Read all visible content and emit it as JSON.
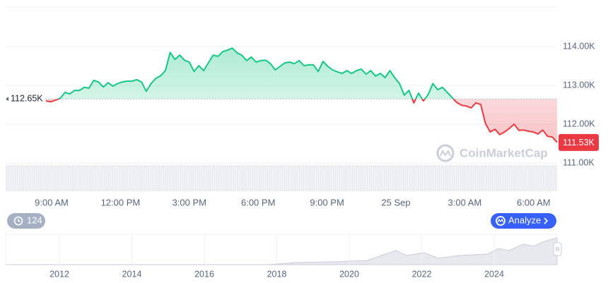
{
  "chart_data": {
    "type": "line",
    "values": [
      112600,
      112580,
      112620,
      112670,
      112820,
      112780,
      112870,
      112870,
      112950,
      112930,
      113130,
      113090,
      112960,
      113070,
      112980,
      113050,
      113090,
      113110,
      113110,
      113150,
      113090,
      112850,
      113050,
      113180,
      113250,
      113380,
      113850,
      113670,
      113780,
      113650,
      113600,
      113360,
      113510,
      113380,
      113580,
      113780,
      113750,
      113870,
      113910,
      113960,
      113840,
      113780,
      113640,
      113730,
      113600,
      113640,
      113650,
      113560,
      113400,
      113490,
      113580,
      113600,
      113560,
      113640,
      113510,
      113530,
      113530,
      113360,
      113620,
      113490,
      113400,
      113350,
      113310,
      113380,
      113310,
      113380,
      113420,
      113290,
      113380,
      113240,
      113310,
      113200,
      113380,
      113200,
      113050,
      112750,
      112870,
      112550,
      112800,
      112600,
      112760,
      113050,
      112890,
      112950,
      112820,
      112690,
      112560,
      112490,
      112470,
      112420,
      112550,
      112510,
      112020,
      111800,
      111870,
      111730,
      111800,
      111890,
      112000,
      111840,
      111850,
      111820,
      111800,
      111750,
      111850,
      111690,
      111670,
      111530
    ],
    "color_above": "#16c784",
    "color_below": "#ea3943",
    "reference": {
      "value": 112650,
      "label": "112.65K"
    },
    "last_price": {
      "value": 111530,
      "label": "111.53K"
    },
    "ylim": [
      111000,
      115000
    ],
    "yticks": [
      {
        "value": 111000,
        "label": "111.00K"
      },
      {
        "value": 112000,
        "label": "112.00K"
      },
      {
        "value": 113000,
        "label": "113.00K"
      },
      {
        "value": 114000,
        "label": "114.00K"
      }
    ],
    "xticks": [
      "9:00 AM",
      "12:00 PM",
      "3:00 PM",
      "6:00 PM",
      "9:00 PM",
      "25 Sep",
      "3:00 AM",
      "6:00 AM"
    ],
    "grid": true,
    "watermark": "CoinMarketCap"
  },
  "controls": {
    "history_count": 124,
    "analyze": "Analyze"
  },
  "navigator": {
    "years": [
      "2012",
      "2014",
      "2016",
      "2018",
      "2020",
      "2022",
      "2024"
    ]
  }
}
